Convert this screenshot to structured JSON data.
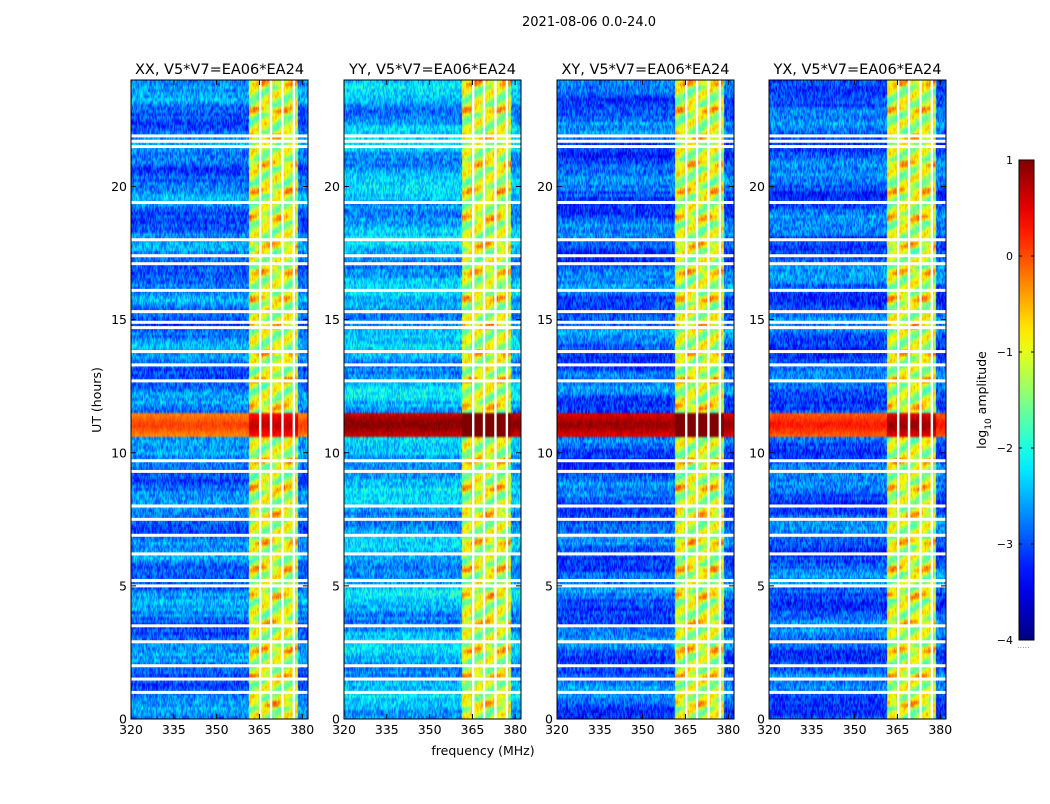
{
  "chart_data": {
    "type": "heatmap",
    "title": "2021-08-06 0.0-24.0",
    "xlabel": "frequency (MHz)",
    "ylabel": "UT (hours)",
    "xlim": [
      320,
      382
    ],
    "ylim": [
      0,
      24
    ],
    "x_ticks": [
      320,
      335,
      350,
      365,
      380
    ],
    "x_tick_labels": [
      "320",
      "335",
      "350",
      "365",
      "380"
    ],
    "y_ticks": [
      0,
      5,
      10,
      15,
      20
    ],
    "y_tick_labels": [
      "0",
      "5",
      "10",
      "15",
      "20"
    ],
    "colorbar": {
      "label_main": "log",
      "label_sub": "10",
      "label_rest": " amplitude",
      "range": [
        -4,
        1
      ],
      "ticks": [
        1,
        0,
        -1,
        -2,
        -3,
        -4
      ],
      "tick_labels": [
        "1",
        "0",
        "−1",
        "−2",
        "−3",
        "−4"
      ],
      "colormap": "jet",
      "footer": "....."
    },
    "panels": [
      {
        "name": "XX",
        "title": "XX, V5*V7=EA06*EA24",
        "background_level": -2.8,
        "flare_level": -0.3
      },
      {
        "name": "YY",
        "title": "YY, V5*V7=EA06*EA24",
        "background_level": -2.5,
        "flare_level": 0.6
      },
      {
        "name": "XY",
        "title": "XY, V5*V7=EA06*EA24",
        "background_level": -2.9,
        "flare_level": 0.5
      },
      {
        "name": "YX",
        "title": "YX, V5*V7=EA06*EA24",
        "background_level": -2.9,
        "flare_level": -0.1
      }
    ],
    "rfi_band_mhz": [
      361.5,
      378.5
    ],
    "rfi_subbands_mhz": [
      [
        361.5,
        365
      ],
      [
        365.5,
        368.8
      ],
      [
        369.3,
        372.8
      ],
      [
        373.3,
        376.8
      ],
      [
        377.3,
        378.5
      ]
    ],
    "event_time_hours": [
      10.6,
      11.5
    ],
    "flagged_times_hours": [
      1.0,
      1.5,
      2.0,
      2.9,
      3.5,
      5.0,
      5.2,
      6.2,
      6.9,
      7.5,
      8.0,
      9.3,
      9.7,
      12.7,
      13.3,
      13.8,
      14.7,
      14.9,
      15.3,
      16.1,
      17.1,
      17.4,
      18.0,
      19.4,
      21.5,
      21.7,
      21.9
    ]
  }
}
